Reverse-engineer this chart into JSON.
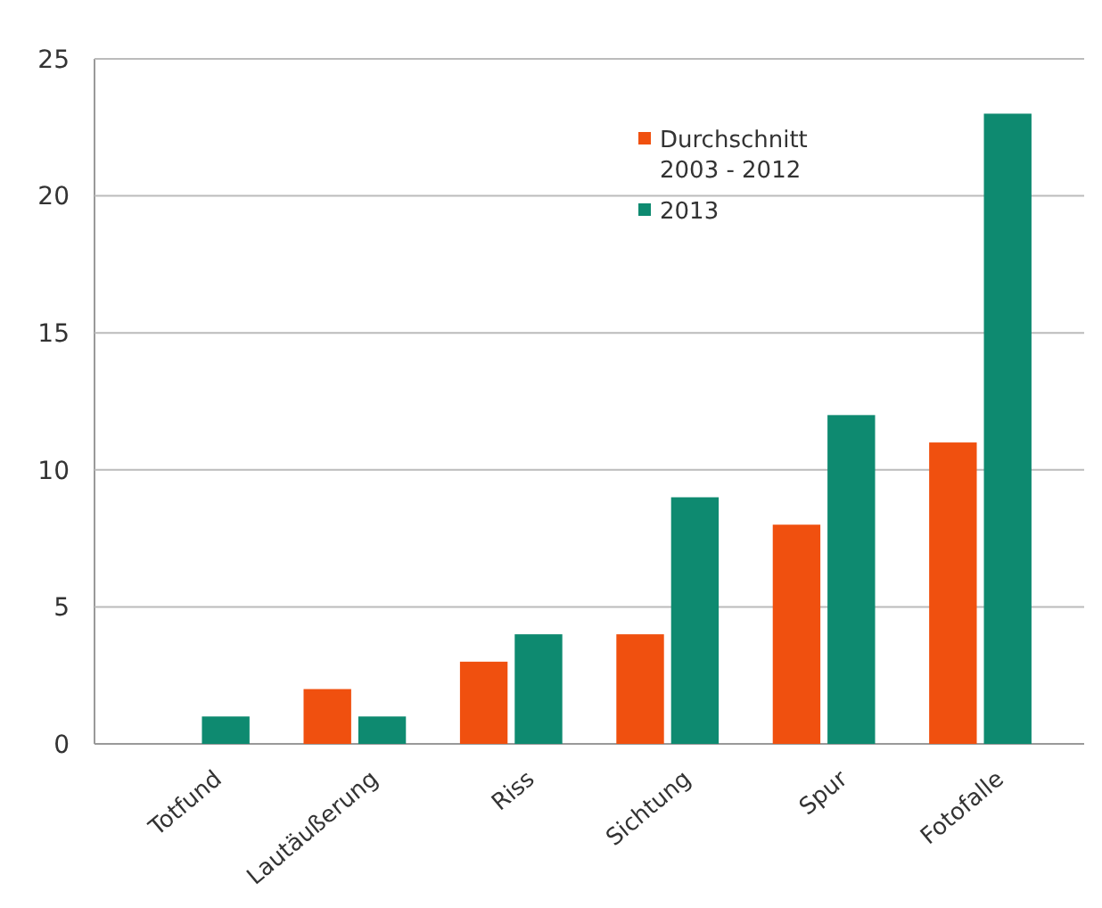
{
  "chart_data": {
    "type": "bar",
    "categories": [
      "Totfund",
      "Lautäußerung",
      "Riss",
      "Sichtung",
      "Spur",
      "Fotofalle"
    ],
    "series": [
      {
        "name": "Durchschnitt 2003 - 2012",
        "color": "#f0500f",
        "values": [
          0,
          2,
          3,
          4,
          8,
          11
        ]
      },
      {
        "name": "2013",
        "color": "#0e8a70",
        "values": [
          1,
          1,
          4,
          9,
          12,
          23
        ]
      }
    ],
    "ylim": [
      0,
      25
    ],
    "yticks": [
      0,
      5,
      10,
      15,
      20,
      25
    ],
    "grid": "y",
    "legend": "top right"
  }
}
